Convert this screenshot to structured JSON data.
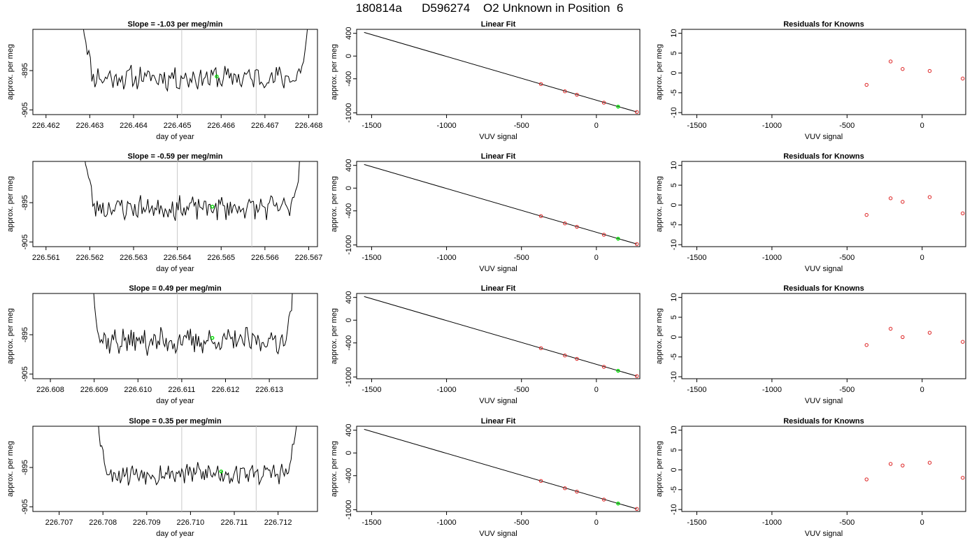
{
  "page": {
    "title": "180814a      D596274    O2 Unknown in Position  6"
  },
  "colors": {
    "trace": "#000000",
    "marker": "#00dd00",
    "residual": "#dd2222",
    "divider": "#c8c8c8"
  },
  "chart_data": [
    {
      "type": "line",
      "panel": "time-series",
      "row": 1,
      "title": "Slope =  -1.03  per meg/min",
      "xlabel": "day of year",
      "ylabel": "approx. per meg",
      "xlim": [
        226.4617,
        226.4682
      ],
      "ylim": [
        -906.2,
        -884.5
      ],
      "xticks": [
        226.462,
        226.463,
        226.464,
        226.465,
        226.466,
        226.467,
        226.468
      ],
      "xtick_labels": [
        "226.462",
        "226.463",
        "226.464",
        "226.465",
        "226.466",
        "226.467",
        "226.468"
      ],
      "yticks": [
        -895,
        -905
      ],
      "ytick_labels": [
        "-895",
        "-905"
      ],
      "trace_start": 226.46284,
      "trace_end": 226.46802,
      "baseline": -896.8,
      "noise": 1.6,
      "seed": 11,
      "vlines": [
        226.4651,
        226.4668
      ],
      "marker": {
        "x": 226.4659,
        "y": -896.5
      },
      "grid": false
    },
    {
      "type": "line",
      "panel": "linear-fit",
      "row": 1,
      "title": "Linear Fit",
      "xlabel": "VUV signal",
      "ylabel": "approx. per meg",
      "xlim": [
        -1600,
        290
      ],
      "ylim": [
        -1030,
        470
      ],
      "xticks": [
        -1500,
        -1000,
        -500,
        0
      ],
      "xtick_labels": [
        "-1500",
        "-1000",
        "-500",
        "0"
      ],
      "yticks": [
        400,
        0,
        -400,
        -1000
      ],
      "ytick_labels": [
        "400",
        "0",
        "-400",
        "-1000"
      ],
      "fit_line": {
        "x": [
          -1550,
          270
        ],
        "y": [
          416,
          -984
        ]
      },
      "points": [
        {
          "x": -370,
          "y": -493
        },
        {
          "x": -210,
          "y": -621
        },
        {
          "x": -130,
          "y": -680
        },
        {
          "x": 50,
          "y": -820
        },
        {
          "x": 270,
          "y": -985
        }
      ],
      "unknown_point": {
        "x": 145,
        "y": -890
      },
      "grid": false
    },
    {
      "type": "scatter",
      "panel": "residuals",
      "row": 1,
      "title": "Residuals for Knowns",
      "xlabel": "VUV signal",
      "ylabel": "approx. per meg",
      "xlim": [
        -1600,
        290
      ],
      "ylim": [
        -10.5,
        11
      ],
      "xticks": [
        -1500,
        -1000,
        -500,
        0
      ],
      "xtick_labels": [
        "-1500",
        "-1000",
        "-500",
        "0"
      ],
      "yticks": [
        10,
        5,
        0,
        -5,
        -10
      ],
      "ytick_labels": [
        "10",
        "5",
        "0",
        "-5",
        "-10"
      ],
      "points": [
        {
          "x": -370,
          "y": -3.0
        },
        {
          "x": -210,
          "y": 2.9
        },
        {
          "x": -130,
          "y": 1.0
        },
        {
          "x": 50,
          "y": 0.5
        },
        {
          "x": 270,
          "y": -1.4
        }
      ],
      "grid": false
    },
    {
      "type": "line",
      "panel": "time-series",
      "row": 2,
      "title": "Slope =  -0.59  per meg/min",
      "xlabel": "day of year",
      "ylabel": "approx. per meg",
      "xlim": [
        226.5607,
        226.5672
      ],
      "ylim": [
        -906.2,
        -884.5
      ],
      "xticks": [
        226.561,
        226.562,
        226.563,
        226.564,
        226.565,
        226.566,
        226.567
      ],
      "xtick_labels": [
        "226.561",
        "226.562",
        "226.563",
        "226.564",
        "226.565",
        "226.566",
        "226.567"
      ],
      "yticks": [
        -895,
        -905
      ],
      "ytick_labels": [
        "-895",
        "-905"
      ],
      "trace_start": 226.56187,
      "trace_end": 226.56683,
      "baseline": -896.3,
      "noise": 1.6,
      "seed": 23,
      "vlines": [
        226.564,
        226.5657
      ],
      "marker": {
        "x": 226.5648,
        "y": -896.0
      },
      "grid": false
    },
    {
      "type": "line",
      "panel": "linear-fit",
      "row": 2,
      "title": "Linear Fit",
      "xlabel": "VUV signal",
      "ylabel": "approx. per meg",
      "xlim": [
        -1600,
        290
      ],
      "ylim": [
        -1030,
        470
      ],
      "xticks": [
        -1500,
        -1000,
        -500,
        0
      ],
      "xtick_labels": [
        "-1500",
        "-1000",
        "-500",
        "0"
      ],
      "yticks": [
        400,
        0,
        -400,
        -1000
      ],
      "ytick_labels": [
        "400",
        "0",
        "-400",
        "-1000"
      ],
      "fit_line": {
        "x": [
          -1550,
          270
        ],
        "y": [
          416,
          -984
        ]
      },
      "points": [
        {
          "x": -370,
          "y": -493
        },
        {
          "x": -210,
          "y": -621
        },
        {
          "x": -130,
          "y": -680
        },
        {
          "x": 50,
          "y": -820
        },
        {
          "x": 270,
          "y": -985
        }
      ],
      "unknown_point": {
        "x": 145,
        "y": -890
      },
      "grid": false
    },
    {
      "type": "scatter",
      "panel": "residuals",
      "row": 2,
      "title": "Residuals for Knowns",
      "xlabel": "VUV signal",
      "ylabel": "approx. per meg",
      "xlim": [
        -1600,
        290
      ],
      "ylim": [
        -10.5,
        11
      ],
      "xticks": [
        -1500,
        -1000,
        -500,
        0
      ],
      "xtick_labels": [
        "-1500",
        "-1000",
        "-500",
        "0"
      ],
      "yticks": [
        10,
        5,
        0,
        -5,
        -10
      ],
      "ytick_labels": [
        "10",
        "5",
        "0",
        "-5",
        "-10"
      ],
      "points": [
        {
          "x": -370,
          "y": -2.5
        },
        {
          "x": -210,
          "y": 1.7
        },
        {
          "x": -130,
          "y": 0.8
        },
        {
          "x": 50,
          "y": 2.0
        },
        {
          "x": 270,
          "y": -2.1
        }
      ],
      "grid": false
    },
    {
      "type": "line",
      "panel": "time-series",
      "row": 3,
      "title": "Slope =  0.49  per meg/min",
      "xlabel": "day of year",
      "ylabel": "approx. per meg",
      "xlim": [
        226.6076,
        226.6141
      ],
      "ylim": [
        -906.2,
        -884.5
      ],
      "xticks": [
        226.608,
        226.609,
        226.61,
        226.611,
        226.612,
        226.613
      ],
      "xtick_labels": [
        "226.608",
        "226.609",
        "226.610",
        "226.611",
        "226.612",
        "226.613"
      ],
      "yticks": [
        -895,
        -905
      ],
      "ytick_labels": [
        "-895",
        "-905"
      ],
      "trace_start": 226.60895,
      "trace_end": 226.61357,
      "baseline": -896.6,
      "noise": 1.7,
      "seed": 37,
      "vlines": [
        226.6109,
        226.6126
      ],
      "marker": {
        "x": 226.6117,
        "y": -895.8
      },
      "grid": false
    },
    {
      "type": "line",
      "panel": "linear-fit",
      "row": 3,
      "title": "Linear Fit",
      "xlabel": "VUV signal",
      "ylabel": "approx. per meg",
      "xlim": [
        -1600,
        290
      ],
      "ylim": [
        -1030,
        470
      ],
      "xticks": [
        -1500,
        -1000,
        -500,
        0
      ],
      "xtick_labels": [
        "-1500",
        "-1000",
        "-500",
        "0"
      ],
      "yticks": [
        400,
        0,
        -400,
        -1000
      ],
      "ytick_labels": [
        "400",
        "0",
        "-400",
        "-1000"
      ],
      "fit_line": {
        "x": [
          -1550,
          270
        ],
        "y": [
          416,
          -984
        ]
      },
      "points": [
        {
          "x": -370,
          "y": -493
        },
        {
          "x": -210,
          "y": -621
        },
        {
          "x": -130,
          "y": -680
        },
        {
          "x": 50,
          "y": -820
        },
        {
          "x": 270,
          "y": -985
        }
      ],
      "unknown_point": {
        "x": 145,
        "y": -890
      },
      "grid": false
    },
    {
      "type": "scatter",
      "panel": "residuals",
      "row": 3,
      "title": "Residuals for Knowns",
      "xlabel": "VUV signal",
      "ylabel": "approx. per meg",
      "xlim": [
        -1600,
        290
      ],
      "ylim": [
        -10.5,
        11
      ],
      "xticks": [
        -1500,
        -1000,
        -500,
        0
      ],
      "xtick_labels": [
        "-1500",
        "-1000",
        "-500",
        "0"
      ],
      "yticks": [
        10,
        5,
        0,
        -5,
        -10
      ],
      "ytick_labels": [
        "10",
        "5",
        "0",
        "-5",
        "-10"
      ],
      "points": [
        {
          "x": -370,
          "y": -2.0
        },
        {
          "x": -210,
          "y": 2.1
        },
        {
          "x": -130,
          "y": 0.0
        },
        {
          "x": 50,
          "y": 1.1
        },
        {
          "x": 270,
          "y": -1.2
        }
      ],
      "grid": false
    },
    {
      "type": "line",
      "panel": "time-series",
      "row": 4,
      "title": "Slope =  0.35  per meg/min",
      "xlabel": "day of year",
      "ylabel": "approx. per meg",
      "xlim": [
        226.7064,
        226.7129
      ],
      "ylim": [
        -906.2,
        -884.5
      ],
      "xticks": [
        226.707,
        226.708,
        226.709,
        226.71,
        226.711,
        226.712
      ],
      "xtick_labels": [
        "226.707",
        "226.708",
        "226.709",
        "226.710",
        "226.711",
        "226.712"
      ],
      "yticks": [
        -895,
        -905
      ],
      "ytick_labels": [
        "-895",
        "-905"
      ],
      "trace_start": 226.70788,
      "trace_end": 226.71245,
      "baseline": -896.5,
      "noise": 1.5,
      "seed": 53,
      "vlines": [
        226.7098,
        226.7115
      ],
      "marker": {
        "x": 226.7107,
        "y": -896.0
      },
      "grid": false
    },
    {
      "type": "line",
      "panel": "linear-fit",
      "row": 4,
      "title": "Linear Fit",
      "xlabel": "VUV signal",
      "ylabel": "approx. per meg",
      "xlim": [
        -1600,
        290
      ],
      "ylim": [
        -1030,
        470
      ],
      "xticks": [
        -1500,
        -1000,
        -500,
        0
      ],
      "xtick_labels": [
        "-1500",
        "-1000",
        "-500",
        "0"
      ],
      "yticks": [
        400,
        0,
        -400,
        -1000
      ],
      "ytick_labels": [
        "400",
        "0",
        "-400",
        "-1000"
      ],
      "fit_line": {
        "x": [
          -1550,
          270
        ],
        "y": [
          416,
          -984
        ]
      },
      "points": [
        {
          "x": -370,
          "y": -493
        },
        {
          "x": -210,
          "y": -621
        },
        {
          "x": -130,
          "y": -680
        },
        {
          "x": 50,
          "y": -820
        },
        {
          "x": 270,
          "y": -985
        }
      ],
      "unknown_point": {
        "x": 145,
        "y": -890
      },
      "grid": false
    },
    {
      "type": "scatter",
      "panel": "residuals",
      "row": 4,
      "title": "Residuals for Knowns",
      "xlabel": "VUV signal",
      "ylabel": "approx. per meg",
      "xlim": [
        -1600,
        290
      ],
      "ylim": [
        -10.5,
        11
      ],
      "xticks": [
        -1500,
        -1000,
        -500,
        0
      ],
      "xtick_labels": [
        "-1500",
        "-1000",
        "-500",
        "0"
      ],
      "yticks": [
        10,
        5,
        0,
        -5,
        -10
      ],
      "ytick_labels": [
        "10",
        "5",
        "0",
        "-5",
        "-10"
      ],
      "points": [
        {
          "x": -370,
          "y": -2.4
        },
        {
          "x": -210,
          "y": 1.5
        },
        {
          "x": -130,
          "y": 1.1
        },
        {
          "x": 50,
          "y": 1.8
        },
        {
          "x": 270,
          "y": -2.0
        }
      ],
      "grid": false
    }
  ]
}
